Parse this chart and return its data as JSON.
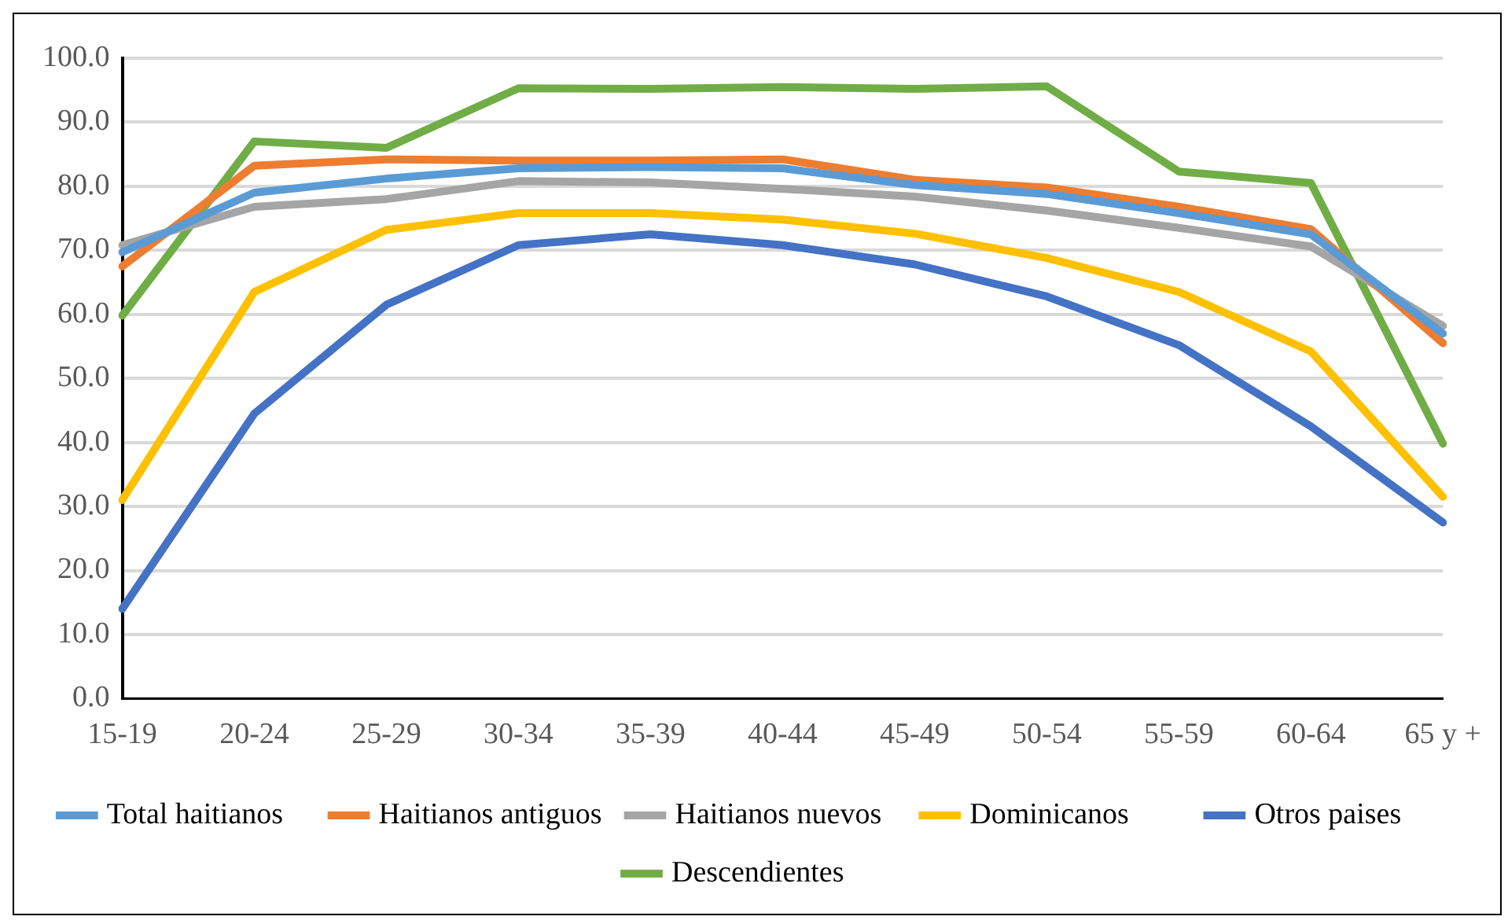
{
  "chart_data": {
    "type": "line",
    "categories": [
      "15-19",
      "20-24",
      "25-29",
      "30-34",
      "35-39",
      "40-44",
      "45-49",
      "50-54",
      "55-59",
      "60-64",
      "65 y +"
    ],
    "series": [
      {
        "name": "Total haitianos",
        "color": "#5b9bd5",
        "values": [
          69.7,
          79,
          81.2,
          82.8,
          83,
          82.8,
          80.2,
          78.8,
          75.8,
          72.5,
          57
        ]
      },
      {
        "name": "Haitianos antiguos",
        "color": "#ed7d31",
        "values": [
          67.5,
          83.2,
          84.2,
          84,
          84,
          84.2,
          81,
          79.8,
          76.8,
          73.3,
          55.5
        ]
      },
      {
        "name": "Haitianos nuevos",
        "color": "#a5a5a5",
        "values": [
          70.8,
          76.8,
          78,
          80.8,
          80.6,
          79.6,
          78.4,
          76.2,
          73.5,
          70.6,
          58.2
        ]
      },
      {
        "name": "Dominicanos",
        "color": "#ffc000",
        "values": [
          31,
          63.5,
          73.2,
          75.8,
          75.8,
          74.8,
          72.6,
          68.8,
          63.5,
          54.2,
          31.5
        ]
      },
      {
        "name": "Otros paises",
        "color": "#4472c4",
        "values": [
          14,
          44.5,
          61.5,
          70.8,
          72.5,
          70.8,
          67.8,
          62.8,
          55.2,
          42.5,
          27.5
        ]
      },
      {
        "name": "Descendientes",
        "color": "#70ad47",
        "values": [
          59.8,
          87,
          86,
          95.3,
          95.2,
          95.5,
          95.2,
          95.6,
          82.3,
          80.5,
          39.8
        ]
      }
    ],
    "ylim": [
      0,
      100
    ],
    "yticks": [
      {
        "value": 0,
        "label": "0.0"
      },
      {
        "value": 10,
        "label": "10.0"
      },
      {
        "value": 20,
        "label": "20.0"
      },
      {
        "value": 30,
        "label": "30.0"
      },
      {
        "value": 40,
        "label": "40.0"
      },
      {
        "value": 50,
        "label": "50.0"
      },
      {
        "value": 60,
        "label": "60.0"
      },
      {
        "value": 70,
        "label": "70.0"
      },
      {
        "value": 80,
        "label": "80.0"
      },
      {
        "value": 90,
        "label": "90.0"
      },
      {
        "value": 100,
        "label": "100.0"
      }
    ],
    "grid": "y",
    "legend": "bottom",
    "marker": "none",
    "line_style": "solid"
  }
}
